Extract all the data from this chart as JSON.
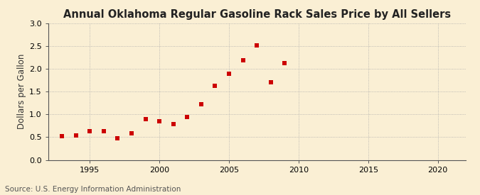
{
  "title": "Annual Oklahoma Regular Gasoline Rack Sales Price by All Sellers",
  "ylabel": "Dollars per Gallon",
  "source": "Source: U.S. Energy Information Administration",
  "background_color": "#faefd4",
  "years": [
    1993,
    1994,
    1995,
    1996,
    1997,
    1998,
    1999,
    2000,
    2001,
    2002,
    2003,
    2004,
    2005,
    2006,
    2007,
    2008,
    2009,
    2010
  ],
  "values": [
    0.52,
    0.54,
    0.63,
    0.63,
    0.47,
    0.58,
    0.9,
    0.85,
    0.78,
    0.95,
    1.22,
    1.63,
    1.9,
    2.19,
    2.52,
    1.7,
    2.12,
    null
  ],
  "marker_color": "#cc0000",
  "marker_size": 4,
  "xlim": [
    1992,
    2022
  ],
  "ylim": [
    0.0,
    3.0
  ],
  "xticks": [
    1995,
    2000,
    2005,
    2010,
    2015,
    2020
  ],
  "yticks": [
    0.0,
    0.5,
    1.0,
    1.5,
    2.0,
    2.5,
    3.0
  ],
  "title_fontsize": 10.5,
  "label_fontsize": 8.5,
  "tick_fontsize": 8,
  "source_fontsize": 7.5
}
